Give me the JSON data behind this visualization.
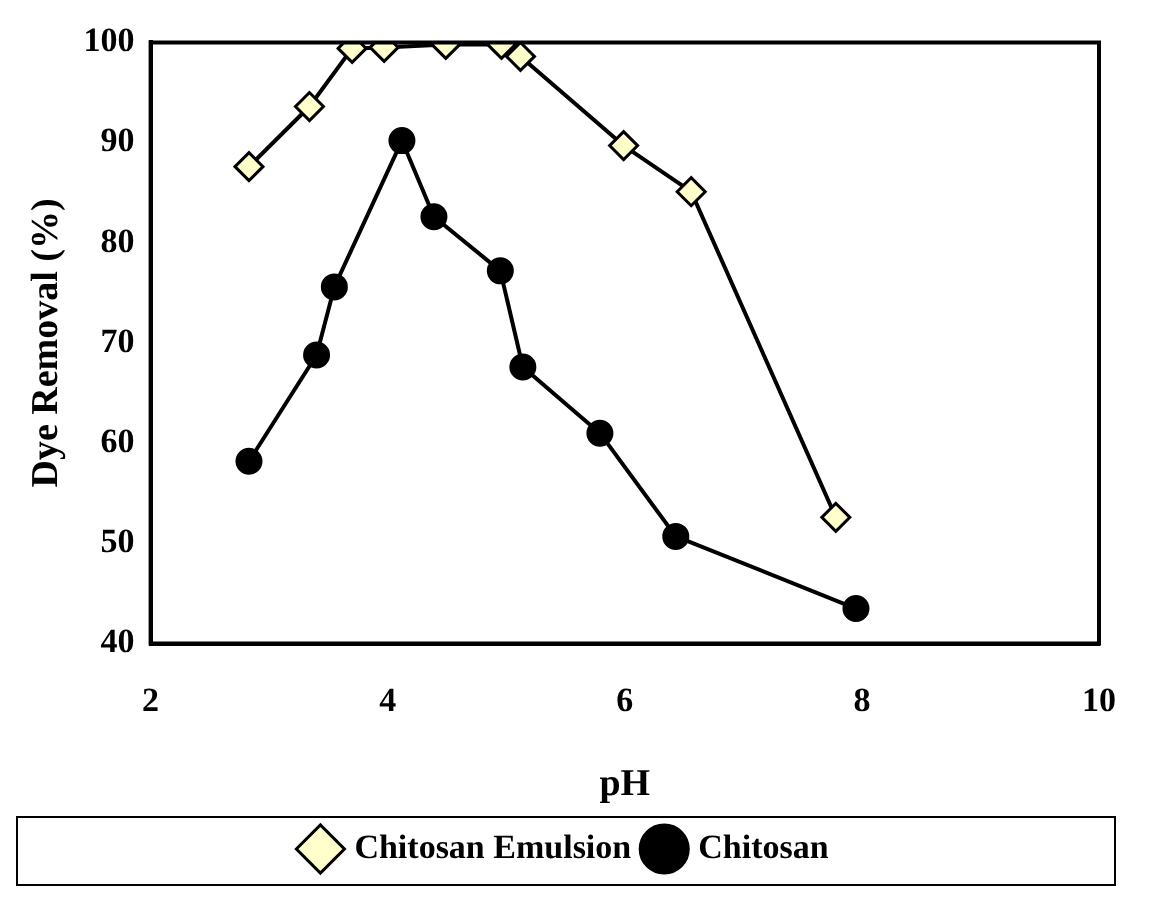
{
  "chart_data": {
    "type": "line",
    "xlabel": "pH",
    "ylabel": "Dye Removal (%)",
    "xlim": [
      2,
      10
    ],
    "xticks": [
      2,
      4,
      6,
      8,
      10
    ],
    "ylim": [
      40,
      100
    ],
    "yticks": [
      40,
      50,
      60,
      70,
      80,
      90,
      100
    ],
    "grid": false,
    "legend": "bottom",
    "line_style": "solid",
    "series": [
      {
        "name": "Chitosan Emulsion",
        "color": "#ffffcc",
        "marker": "diamond",
        "x": [
          2.83,
          3.34,
          3.7,
          3.97,
          4.49,
          4.96,
          5.12,
          5.99,
          6.56,
          7.78
        ],
        "values": [
          87.6,
          93.6,
          99.4,
          99.5,
          99.8,
          99.8,
          98.6,
          89.7,
          85.1,
          52.6
        ]
      },
      {
        "name": "Chitosan",
        "color": "#000000",
        "marker": "circle",
        "x": [
          2.83,
          3.4,
          3.55,
          4.12,
          4.39,
          4.95,
          5.14,
          5.79,
          6.43,
          7.95
        ],
        "values": [
          58.2,
          68.8,
          75.6,
          90.2,
          82.6,
          77.2,
          67.6,
          61.0,
          50.7,
          43.5
        ]
      }
    ]
  }
}
